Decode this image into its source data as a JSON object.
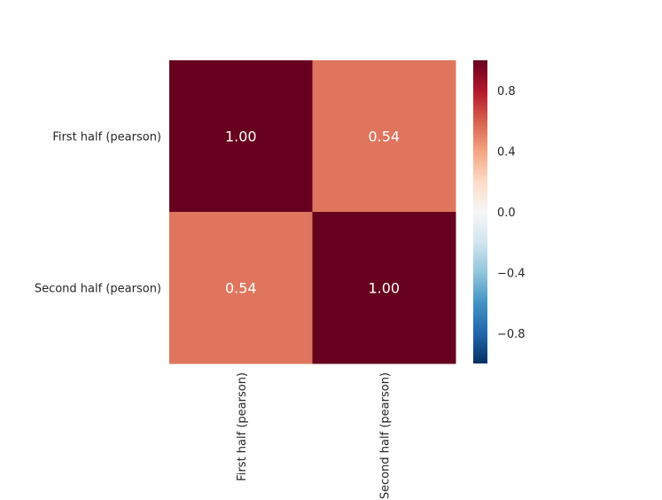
{
  "chart_data": {
    "type": "heatmap",
    "row_labels": [
      "First half (pearson)",
      "Second half (pearson)"
    ],
    "col_labels": [
      "First half (pearson)",
      "Second half (pearson)"
    ],
    "values": [
      [
        1.0,
        0.54
      ],
      [
        0.54,
        1.0
      ]
    ],
    "cell_labels": [
      [
        "1.00",
        "0.54"
      ],
      [
        "0.54",
        "1.00"
      ]
    ],
    "colormap": "RdBu_r",
    "vmin": -1.0,
    "vmax": 1.0,
    "colorbar_ticks": [
      0.8,
      0.4,
      0.0,
      -0.4,
      -0.8
    ],
    "colorbar_tick_labels": [
      "0.8",
      "0.4",
      "0.0",
      "−0.4",
      "−0.8"
    ],
    "colors": {
      "max": "#67001f",
      "high": "#d6604d",
      "mid": "#f7f7f7",
      "min": "#053061",
      "text": "#ffffff"
    }
  }
}
